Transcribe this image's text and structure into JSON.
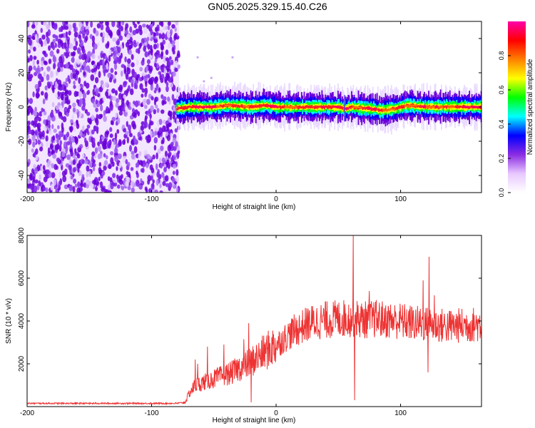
{
  "title": "GN05.2025.329.15.40.C26",
  "chart_data": [
    {
      "type": "heatmap",
      "title": "",
      "xlabel": "Height of straight line (km)",
      "ylabel": "Frequency (Hz)",
      "xlim": [
        -200,
        165
      ],
      "ylim": [
        -50,
        50
      ],
      "xticks": [
        -200,
        -100,
        0,
        100
      ],
      "yticks": [
        -40,
        -20,
        0,
        20,
        40
      ],
      "grid": false,
      "colorbar": {
        "label": "Normalized spectral amplitude",
        "range": [
          0,
          1
        ],
        "ticks": [
          0.0,
          0.2,
          0.4,
          0.6,
          0.8
        ],
        "colormap": [
          "#ffffff",
          "#e8c8ff",
          "#8a2be2",
          "#0000ff",
          "#00ffff",
          "#00ff00",
          "#ffff00",
          "#ff8000",
          "#ff0000",
          "#ff00aa"
        ]
      },
      "noise_region": {
        "x_range": [
          -200,
          -78
        ],
        "freq_range": [
          -50,
          50
        ],
        "amplitude_approx": 0.1
      },
      "signal_band": {
        "x_range": [
          -80,
          165
        ],
        "center_freq_points": [
          [
            -80,
            -1
          ],
          [
            -70,
            0
          ],
          [
            -50,
            0
          ],
          [
            -40,
            1
          ],
          [
            -20,
            0
          ],
          [
            -10,
            1
          ],
          [
            0,
            0
          ],
          [
            50,
            0
          ],
          [
            55,
            -1
          ],
          [
            60,
            0
          ],
          [
            75,
            -1
          ],
          [
            85,
            -2
          ],
          [
            95,
            -1
          ],
          [
            105,
            1
          ],
          [
            120,
            0
          ],
          [
            165,
            0
          ]
        ],
        "peak_amplitude": 0.95
      },
      "outliers": [
        [
          -63,
          29
        ],
        [
          -58,
          15
        ],
        [
          -52,
          17
        ],
        [
          -35,
          29
        ],
        [
          -45,
          12
        ],
        [
          55,
          5
        ],
        [
          55,
          -6
        ]
      ]
    },
    {
      "type": "line",
      "title": "",
      "xlabel": "Height of straight line (km)",
      "ylabel": "SNR (10 * v/v)",
      "xlim": [
        -200,
        165
      ],
      "ylim": [
        0,
        8000
      ],
      "xticks": [
        -200,
        -100,
        0,
        100
      ],
      "yticks": [
        2000,
        4000,
        6000,
        8000
      ],
      "grid": false,
      "series": [
        {
          "color": "#ee3333",
          "envelope": [
            [
              -200,
              150
            ],
            [
              -150,
              150
            ],
            [
              -100,
              150
            ],
            [
              -80,
              150
            ],
            [
              -73,
              200
            ],
            [
              -70,
              600
            ],
            [
              -65,
              1000
            ],
            [
              -60,
              1100
            ],
            [
              -55,
              1200
            ],
            [
              -50,
              1300
            ],
            [
              -45,
              1400
            ],
            [
              -40,
              1500
            ],
            [
              -35,
              1600
            ],
            [
              -30,
              1800
            ],
            [
              -25,
              1900
            ],
            [
              -20,
              2100
            ],
            [
              -15,
              2300
            ],
            [
              -10,
              2500
            ],
            [
              -5,
              2700
            ],
            [
              0,
              2900
            ],
            [
              5,
              3100
            ],
            [
              10,
              3350
            ],
            [
              15,
              3550
            ],
            [
              20,
              3700
            ],
            [
              25,
              3850
            ],
            [
              30,
              3950
            ],
            [
              40,
              4050
            ],
            [
              50,
              4100
            ],
            [
              60,
              4150
            ],
            [
              65,
              4100
            ],
            [
              70,
              4050
            ],
            [
              80,
              4100
            ],
            [
              90,
              4050
            ],
            [
              100,
              4000
            ],
            [
              110,
              3900
            ],
            [
              120,
              3850
            ],
            [
              130,
              3800
            ],
            [
              140,
              3750
            ],
            [
              150,
              3800
            ],
            [
              165,
              3850
            ]
          ],
          "spikes": [
            [
              -65,
              2200
            ],
            [
              -63,
              2000
            ],
            [
              -55,
              2800
            ],
            [
              -42,
              2900
            ],
            [
              -26,
              3150
            ],
            [
              -22,
              3900
            ],
            [
              -20,
              200
            ],
            [
              48,
              4700
            ],
            [
              60,
              4600
            ],
            [
              62,
              8000
            ],
            [
              63,
              300
            ],
            [
              75,
              5400
            ],
            [
              80,
              4900
            ],
            [
              87,
              4600
            ],
            [
              123,
              7000
            ],
            [
              118,
              5900
            ],
            [
              122,
              1600
            ],
            [
              127,
              5200
            ]
          ]
        }
      ]
    }
  ]
}
